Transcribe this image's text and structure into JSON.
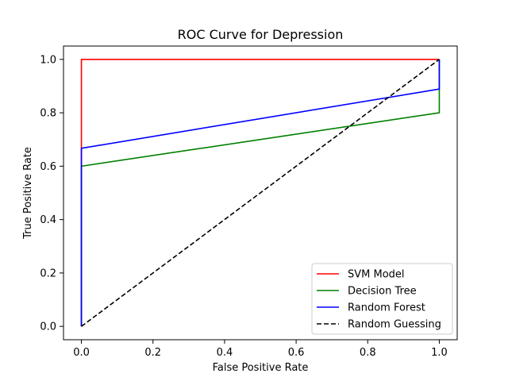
{
  "chart_data": {
    "type": "line",
    "title": "ROC Curve for Depression",
    "xlabel": "False Positive Rate",
    "ylabel": "True Positive Rate",
    "xlim": [
      -0.05,
      1.05
    ],
    "ylim": [
      -0.05,
      1.05
    ],
    "xticks": [
      0.0,
      0.2,
      0.4,
      0.6,
      0.8,
      1.0
    ],
    "yticks": [
      0.0,
      0.2,
      0.4,
      0.6,
      0.8,
      1.0
    ],
    "xtick_labels": [
      "0.0",
      "0.2",
      "0.4",
      "0.6",
      "0.8",
      "1.0"
    ],
    "ytick_labels": [
      "0.0",
      "0.2",
      "0.4",
      "0.6",
      "0.8",
      "1.0"
    ],
    "grid": false,
    "legend_position": "lower-right",
    "series": [
      {
        "name": "SVM Model",
        "color": "#ff0000",
        "dash": "solid",
        "x": [
          0.0,
          0.0,
          1.0
        ],
        "y": [
          0.0,
          1.0,
          1.0
        ]
      },
      {
        "name": "Decision Tree",
        "color": "#008000",
        "dash": "solid",
        "x": [
          0.0,
          0.0,
          1.0,
          1.0
        ],
        "y": [
          0.0,
          0.6,
          0.8,
          1.0
        ]
      },
      {
        "name": "Random Forest",
        "color": "#0000ff",
        "dash": "solid",
        "x": [
          0.0,
          0.0,
          1.0,
          1.0
        ],
        "y": [
          0.0,
          0.667,
          0.889,
          1.0
        ]
      },
      {
        "name": "Random Guessing",
        "color": "#000000",
        "dash": "dashed",
        "x": [
          0.0,
          1.0
        ],
        "y": [
          0.0,
          1.0
        ]
      }
    ]
  }
}
